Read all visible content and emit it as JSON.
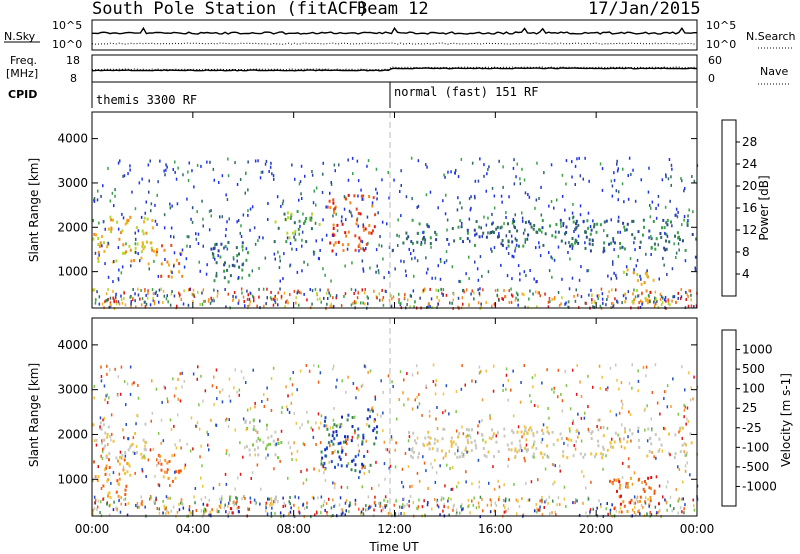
{
  "header": {
    "title": "South Pole Station (fitACF)",
    "beam": "Beam 12",
    "date": "17/Jan/2015"
  },
  "panels": {
    "nsky": {
      "label": "N.Sky",
      "ticks_left": [
        "10^5",
        "10^0"
      ],
      "ticks_right": [
        "10^5",
        "10^0"
      ],
      "right_label": "N.Search"
    },
    "freq": {
      "label_line1": "Freq.",
      "label_line2": "[MHz]",
      "ticks_left": [
        "18",
        "8"
      ],
      "ticks_right": [
        "60",
        "0"
      ],
      "right_label": "Nave"
    },
    "cpid": {
      "label": "CPID",
      "segments": [
        "themis 3300 RF",
        "normal (fast) 151 RF"
      ]
    }
  },
  "colors": {
    "power": [
      "#1f34e8",
      "#2a44a0",
      "#2f6e60",
      "#3aa04a",
      "#b8d632",
      "#f4b122",
      "#f08a1a",
      "#e8491a",
      "#e01515"
    ],
    "velocity": [
      "#e01515",
      "#f25b12",
      "#f59a2c",
      "#f2c43c",
      "#c8c8c0",
      "#c8c8c0",
      "#7ec848",
      "#3a8a50",
      "#2050c8",
      "#1a2ab8"
    ]
  },
  "chart_data": [
    {
      "type": "heatmap",
      "name": "power-panel",
      "xlabel": "Time UT",
      "ylabel": "Slant Range [km]",
      "xlim": [
        0,
        24
      ],
      "ylim": [
        180,
        4600
      ],
      "x_ticks": [
        "00:00",
        "04:00",
        "08:00",
        "12:00",
        "16:00",
        "20:00",
        "00:00"
      ],
      "y_ticks": [
        "1000",
        "2000",
        "3000",
        "4000"
      ],
      "colorbar": {
        "label": "Power [dB]",
        "ticks": [
          "28",
          "24",
          "20",
          "16",
          "12",
          "8",
          "4"
        ]
      },
      "echo_regions": [
        {
          "t0": 0.0,
          "t1": 2.5,
          "r0": 1200,
          "r1": 2300,
          "level": 5
        },
        {
          "t0": 2.5,
          "t1": 3.6,
          "r0": 900,
          "r1": 1700,
          "level": 6
        },
        {
          "t0": 4.6,
          "t1": 6.2,
          "r0": 800,
          "r1": 1700,
          "level": 2
        },
        {
          "t0": 7.2,
          "t1": 9.0,
          "r0": 1700,
          "r1": 2400,
          "level": 3
        },
        {
          "t0": 9.3,
          "t1": 11.2,
          "r0": 1500,
          "r1": 2800,
          "level": 7
        },
        {
          "t0": 12.3,
          "t1": 20.0,
          "r0": 1600,
          "r1": 2200,
          "level": 2
        },
        {
          "t0": 19.5,
          "t1": 23.8,
          "r0": 1500,
          "r1": 2200,
          "level": 2
        },
        {
          "t0": 21.0,
          "t1": 22.3,
          "r0": 300,
          "r1": 1100,
          "level": 5
        }
      ]
    },
    {
      "type": "heatmap",
      "name": "velocity-panel",
      "xlabel": "Time UT",
      "ylabel": "Slant Range [km]",
      "xlim": [
        0,
        24
      ],
      "ylim": [
        180,
        4600
      ],
      "x_ticks": [
        "00:00",
        "04:00",
        "08:00",
        "12:00",
        "16:00",
        "20:00",
        "00:00"
      ],
      "y_ticks": [
        "1000",
        "2000",
        "3000",
        "4000"
      ],
      "colorbar": {
        "label": "Velocity [m s-1]",
        "ticks": [
          "1000",
          "500",
          "100",
          "25",
          "-25",
          "-100",
          "-500",
          "-1000"
        ]
      },
      "echo_regions": [
        {
          "t0": 0.0,
          "t1": 2.2,
          "r0": 1500,
          "r1": 2300,
          "level": 4
        },
        {
          "t0": 0.0,
          "t1": 1.5,
          "r0": 600,
          "r1": 1500,
          "level": 2
        },
        {
          "t0": 2.5,
          "t1": 3.5,
          "r0": 800,
          "r1": 1600,
          "level": 2
        },
        {
          "t0": 6.0,
          "t1": 7.5,
          "r0": 1500,
          "r1": 2400,
          "level": 5
        },
        {
          "t0": 9.0,
          "t1": 11.3,
          "r0": 1200,
          "r1": 2600,
          "level": 8
        },
        {
          "t0": 12.5,
          "t1": 23.8,
          "r0": 1500,
          "r1": 2200,
          "level": 4
        },
        {
          "t0": 20.5,
          "t1": 22.5,
          "r0": 300,
          "r1": 1100,
          "level": 1
        }
      ]
    }
  ]
}
